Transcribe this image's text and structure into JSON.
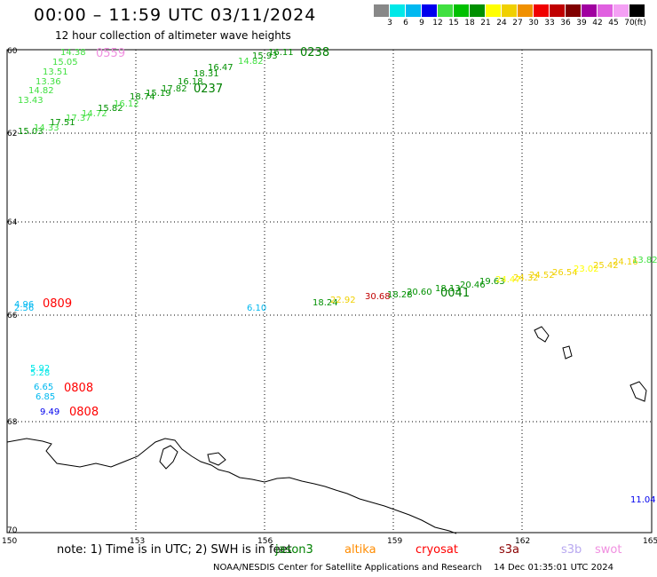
{
  "header": {
    "title": "00:00 – 11:59 UTC 03/11/2024",
    "subtitle": "12 hour collection of altimeter wave heights"
  },
  "colorbar": {
    "colors": [
      "#888888",
      "#00e8e8",
      "#00b8f0",
      "#0000ee",
      "#40e040",
      "#00c000",
      "#009000",
      "#ffff00",
      "#f0d000",
      "#f09000",
      "#f00000",
      "#c00000",
      "#800000",
      "#a000a0",
      "#e060e0",
      "#f4a0f4",
      "#000000"
    ],
    "labels": [
      "3",
      "6",
      "9",
      "12",
      "15",
      "18",
      "21",
      "24",
      "27",
      "30",
      "33",
      "36",
      "39",
      "42",
      "45",
      "70"
    ],
    "unit": "(ft)"
  },
  "axes": {
    "lat_labels": [
      "60",
      "62",
      "64",
      "66",
      "68",
      "70"
    ],
    "lon_labels": [
      "150",
      "153",
      "156",
      "159",
      "162",
      "165"
    ]
  },
  "satellites": [
    {
      "name": "jason3",
      "color": "#008000"
    },
    {
      "name": "altika",
      "color": "#ff8c00"
    },
    {
      "name": "cryosat",
      "color": "#ff0000"
    },
    {
      "name": "s3a",
      "color": "#8b0000"
    },
    {
      "name": "s3b",
      "color": "#b8a8f0"
    },
    {
      "name": "swot",
      "color": "#f090e0"
    }
  ],
  "waves": [
    {
      "v": "14.38",
      "color": "#40e040"
    },
    {
      "v": "15.05",
      "color": "#40e040"
    },
    {
      "v": "13.51",
      "color": "#40e040"
    },
    {
      "v": "13.36",
      "color": "#40e040"
    },
    {
      "v": "14.82",
      "color": "#40e040"
    },
    {
      "v": "13.43",
      "color": "#40e040"
    },
    {
      "v": "15.03",
      "color": "#009000"
    },
    {
      "v": "14.33",
      "color": "#40e040"
    },
    {
      "v": "17.51",
      "color": "#009000"
    },
    {
      "v": "17.37",
      "color": "#40e040"
    },
    {
      "v": "14.72",
      "color": "#40e040"
    },
    {
      "v": "15.82",
      "color": "#009000"
    },
    {
      "v": "16.12",
      "color": "#40e040"
    },
    {
      "v": "18.74",
      "color": "#009000"
    },
    {
      "v": "15.19",
      "color": "#009000"
    },
    {
      "v": "17.82",
      "color": "#009000"
    },
    {
      "v": "16.18",
      "color": "#009000"
    },
    {
      "v": "18.31",
      "color": "#009000"
    },
    {
      "v": "16.47",
      "color": "#009000"
    },
    {
      "v": "14.82",
      "color": "#40e040"
    },
    {
      "v": "15.93",
      "color": "#009000"
    },
    {
      "v": "16.11",
      "color": "#009000"
    },
    {
      "v": "4.96",
      "color": "#00b8f0"
    },
    {
      "v": "2.56",
      "color": "#00b8f0"
    },
    {
      "v": "6.10",
      "color": "#00b8f0"
    },
    {
      "v": "5.92",
      "color": "#00e8e8"
    },
    {
      "v": "5.28",
      "color": "#00e8e8"
    },
    {
      "v": "6.65",
      "color": "#00b8f0"
    },
    {
      "v": "6.85",
      "color": "#00b8f0"
    },
    {
      "v": "9.49",
      "color": "#0000ee"
    },
    {
      "v": "18.24",
      "color": "#009000"
    },
    {
      "v": "22.92",
      "color": "#f0d000"
    },
    {
      "v": "30.68",
      "color": "#c00000"
    },
    {
      "v": "18.28",
      "color": "#009000"
    },
    {
      "v": "20.60",
      "color": "#009000"
    },
    {
      "v": "18.13",
      "color": "#009000"
    },
    {
      "v": "20.46",
      "color": "#009000"
    },
    {
      "v": "19.63",
      "color": "#009000"
    },
    {
      "v": "24.47",
      "color": "#ffff00"
    },
    {
      "v": "24.32",
      "color": "#f0d000"
    },
    {
      "v": "24.52",
      "color": "#f0d000"
    },
    {
      "v": "26.54",
      "color": "#f0d000"
    },
    {
      "v": "23.02",
      "color": "#ffff00"
    },
    {
      "v": "25.42",
      "color": "#f0d000"
    },
    {
      "v": "24.16",
      "color": "#f0d000"
    },
    {
      "v": "13.82",
      "color": "#40e040"
    },
    {
      "v": "11.04",
      "color": "#0000ee"
    }
  ],
  "times": [
    {
      "t": "0559",
      "color": "#f090e0"
    },
    {
      "t": "0238",
      "color": "#008000"
    },
    {
      "t": "0237",
      "color": "#008000"
    },
    {
      "t": "0809",
      "color": "#ff0000"
    },
    {
      "t": "0808",
      "color": "#ff0000"
    },
    {
      "t": "0808",
      "color": "#ff0000"
    },
    {
      "t": "0041",
      "color": "#008000"
    }
  ],
  "footer": {
    "note": "note: 1) Time is in UTC; 2) SWH is in feet",
    "credit": "NOAA/NESDIS Center for Satellite Applications and Research",
    "timestamp": "14 Dec 01:35:01 UTC 2024"
  }
}
